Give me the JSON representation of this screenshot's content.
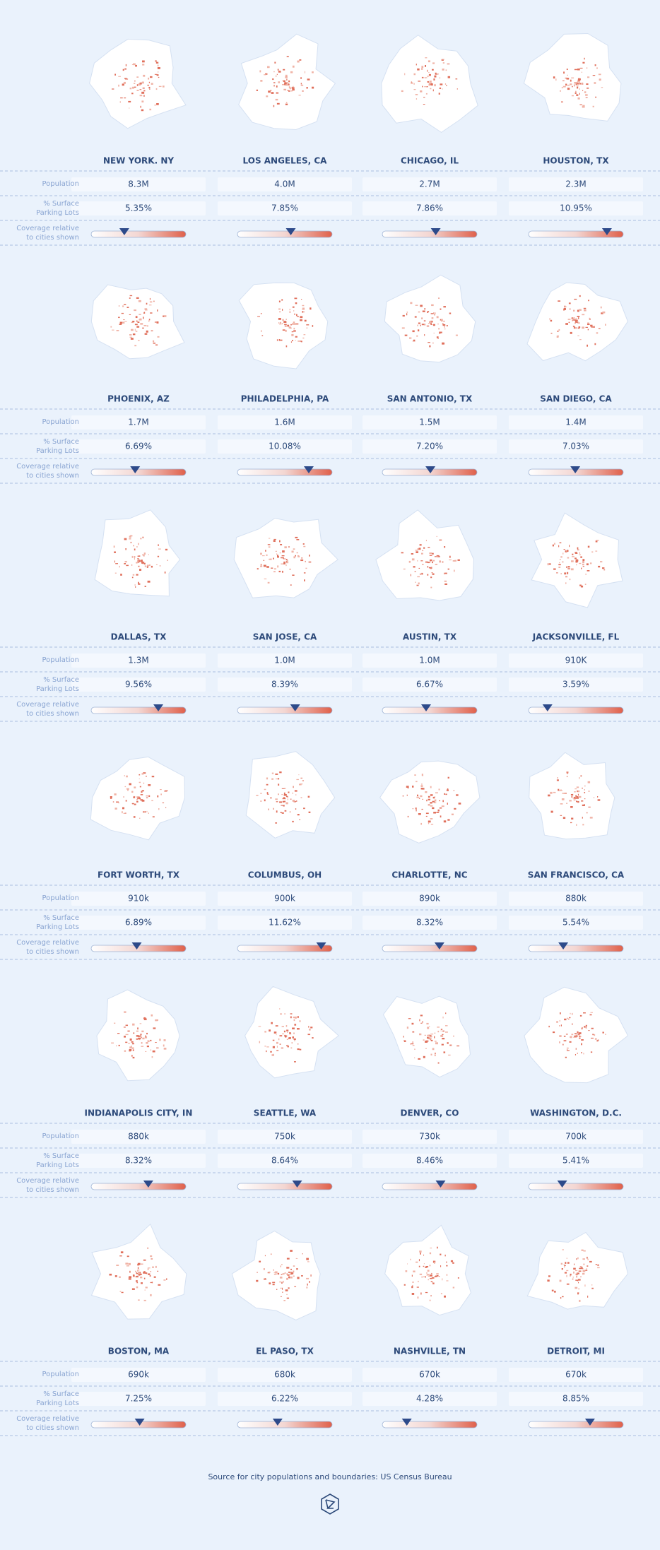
{
  "row_labels": {
    "population": "Population",
    "parking": [
      "% Surface",
      "Parking Lots"
    ],
    "coverage": [
      "Coverage relative",
      "to cities shown"
    ]
  },
  "cities": [
    {
      "name": "NEW YORK. NY",
      "population": "8.3M",
      "parking_pct": 5.35,
      "parking_label": "5.35%"
    },
    {
      "name": "LOS ANGELES, CA",
      "population": "4.0M",
      "parking_pct": 7.85,
      "parking_label": "7.85%"
    },
    {
      "name": "CHICAGO, IL",
      "population": "2.7M",
      "parking_pct": 7.86,
      "parking_label": "7.86%"
    },
    {
      "name": "HOUSTON, TX",
      "population": "2.3M",
      "parking_pct": 10.95,
      "parking_label": "10.95%"
    },
    {
      "name": "PHOENIX, AZ",
      "population": "1.7M",
      "parking_pct": 6.69,
      "parking_label": "6.69%"
    },
    {
      "name": "PHILADELPHIA, PA",
      "population": "1.6M",
      "parking_pct": 10.08,
      "parking_label": "10.08%"
    },
    {
      "name": "SAN ANTONIO, TX",
      "population": "1.5M",
      "parking_pct": 7.2,
      "parking_label": "7.20%"
    },
    {
      "name": "SAN DIEGO, CA",
      "population": "1.4M",
      "parking_pct": 7.03,
      "parking_label": "7.03%"
    },
    {
      "name": "DALLAS, TX",
      "population": "1.3M",
      "parking_pct": 9.56,
      "parking_label": "9.56%"
    },
    {
      "name": "SAN JOSE, CA",
      "population": "1.0M",
      "parking_pct": 8.39,
      "parking_label": "8.39%"
    },
    {
      "name": "AUSTIN, TX",
      "population": "1.0M",
      "parking_pct": 6.67,
      "parking_label": "6.67%"
    },
    {
      "name": "JACKSONVILLE, FL",
      "population": "910K",
      "parking_pct": 3.59,
      "parking_label": "3.59%"
    },
    {
      "name": "FORT WORTH, TX",
      "population": "910k",
      "parking_pct": 6.89,
      "parking_label": "6.89%"
    },
    {
      "name": "COLUMBUS, OH",
      "population": "900k",
      "parking_pct": 11.62,
      "parking_label": "11.62%"
    },
    {
      "name": "CHARLOTTE, NC",
      "population": "890k",
      "parking_pct": 8.32,
      "parking_label": "8.32%"
    },
    {
      "name": "SAN FRANCISCO, CA",
      "population": "880k",
      "parking_pct": 5.54,
      "parking_label": "5.54%"
    },
    {
      "name": "INDIANAPOLIS CITY, IN",
      "population": "880k",
      "parking_pct": 8.32,
      "parking_label": "8.32%"
    },
    {
      "name": "SEATTLE, WA",
      "population": "750k",
      "parking_pct": 8.64,
      "parking_label": "8.64%"
    },
    {
      "name": "DENVER, CO",
      "population": "730k",
      "parking_pct": 8.46,
      "parking_label": "8.46%"
    },
    {
      "name": "WASHINGTON, D.C.",
      "population": "700k",
      "parking_pct": 5.41,
      "parking_label": "5.41%"
    },
    {
      "name": "BOSTON, MA",
      "population": "690k",
      "parking_pct": 7.25,
      "parking_label": "7.25%"
    },
    {
      "name": "EL PASO, TX",
      "population": "680k",
      "parking_pct": 6.22,
      "parking_label": "6.22%"
    },
    {
      "name": "NASHVILLE, TN",
      "population": "670k",
      "parking_pct": 4.28,
      "parking_label": "4.28%"
    },
    {
      "name": "DETROIT, MI",
      "population": "670k",
      "parking_pct": 8.85,
      "parking_label": "8.85%"
    }
  ],
  "footer": "Source for city populations and boundaries: US Census Bureau"
}
